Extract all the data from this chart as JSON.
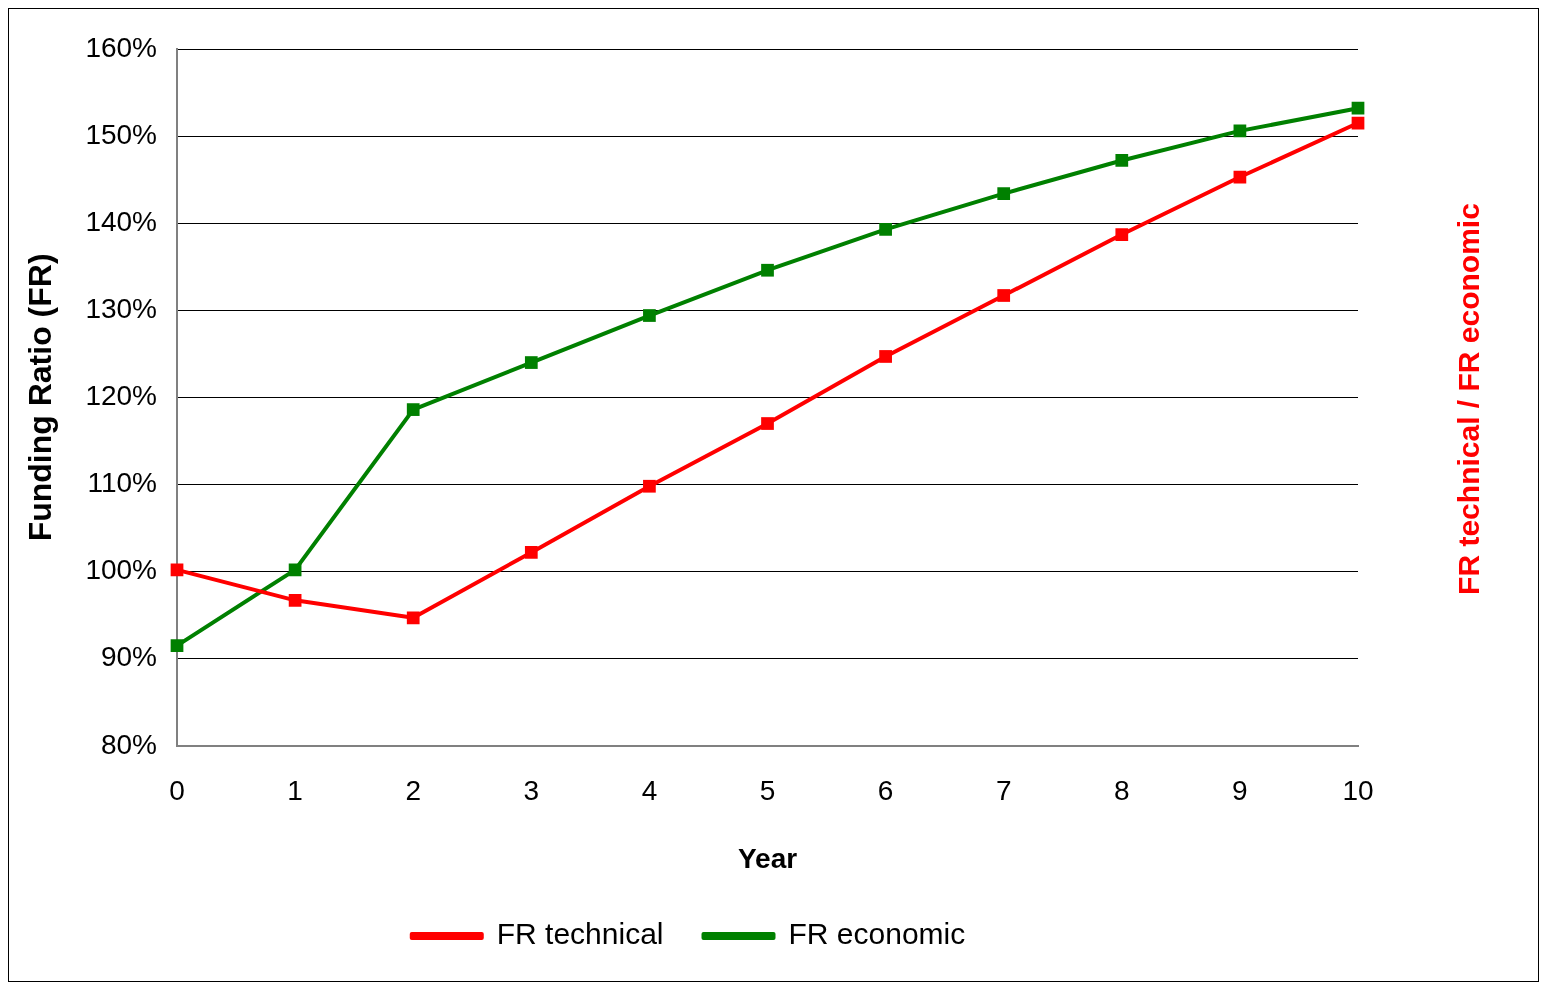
{
  "chart_data": {
    "type": "line",
    "xlabel": "Year",
    "ylabel": "Funding Ratio (FR)",
    "y2label": "FR technical / FR economic",
    "categories": [
      "0",
      "1",
      "2",
      "3",
      "4",
      "5",
      "6",
      "7",
      "8",
      "9",
      "10"
    ],
    "series": [
      {
        "name": "FR technical",
        "color": "#ff0000",
        "values": [
          100.2,
          96.7,
          94.7,
          102.2,
          109.8,
          117.0,
          124.7,
          131.7,
          138.7,
          145.3,
          151.5
        ]
      },
      {
        "name": "FR economic",
        "color": "#008000",
        "values": [
          91.5,
          100.2,
          118.6,
          124.0,
          129.4,
          134.6,
          139.3,
          143.4,
          147.2,
          150.6,
          153.2
        ]
      }
    ],
    "ylim": [
      80,
      160
    ],
    "yticks": [
      {
        "value": 80,
        "label": "80%"
      },
      {
        "value": 90,
        "label": "90%"
      },
      {
        "value": 100,
        "label": "100%"
      },
      {
        "value": 110,
        "label": "110%"
      },
      {
        "value": 120,
        "label": "120%"
      },
      {
        "value": 130,
        "label": "130%"
      },
      {
        "value": 140,
        "label": "140%"
      },
      {
        "value": 150,
        "label": "150%"
      },
      {
        "value": 160,
        "label": "160%"
      }
    ],
    "grid": "y",
    "legend": "bottom",
    "marker": "square",
    "line_style": "solid"
  }
}
